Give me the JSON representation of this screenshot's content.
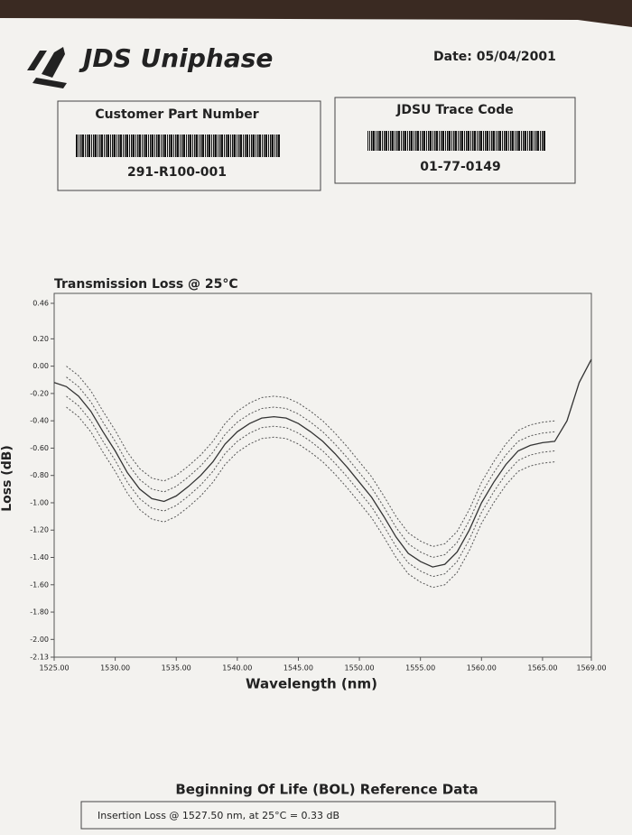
{
  "header": {
    "logo": "JDS Uniphase",
    "date": "Date: 05/04/2001"
  },
  "boxes": [
    {
      "title": "Customer Part Number",
      "value": "291-R100-001"
    },
    {
      "title": "JDSU Trace Code",
      "value": "01-77-0149"
    }
  ],
  "chart_data": {
    "type": "line",
    "title": "Transmission Loss @ 25°C",
    "x_label": "Wavelength (nm)",
    "y_label": "Loss (dB)",
    "x": [
      1525,
      1526,
      1527,
      1528,
      1529,
      1530,
      1531,
      1532,
      1533,
      1534,
      1535,
      1536,
      1537,
      1538,
      1539,
      1540,
      1541,
      1542,
      1543,
      1544,
      1545,
      1546,
      1547,
      1548,
      1549,
      1550,
      1551,
      1552,
      1553,
      1554,
      1555,
      1556,
      1557,
      1558,
      1559,
      1560,
      1561,
      1562,
      1563,
      1564,
      1565,
      1566,
      1567,
      1568,
      1569
    ],
    "series": [
      {
        "color": "#333333",
        "dashed": false,
        "values": [
          -0.12,
          -0.15,
          -0.22,
          -0.33,
          -0.48,
          -0.62,
          -0.78,
          -0.9,
          -0.97,
          -0.99,
          -0.95,
          -0.88,
          -0.8,
          -0.7,
          -0.57,
          -0.48,
          -0.42,
          -0.38,
          -0.37,
          -0.38,
          -0.42,
          -0.48,
          -0.55,
          -0.64,
          -0.74,
          -0.85,
          -0.96,
          -1.1,
          -1.25,
          -1.37,
          -1.43,
          -1.47,
          -1.45,
          -1.36,
          -1.2,
          -1.0,
          -0.85,
          -0.72,
          -0.62,
          -0.58,
          -0.56,
          -0.55,
          -0.4,
          -0.12,
          0.05
        ]
      },
      {
        "color": "#555555",
        "dashed": true,
        "values": [
          null,
          0,
          -0.07,
          -0.18,
          -0.33,
          -0.47,
          -0.63,
          -0.75,
          -0.82,
          -0.84,
          -0.8,
          -0.73,
          -0.65,
          -0.55,
          -0.42,
          -0.33,
          -0.27,
          -0.23,
          -0.22,
          -0.23,
          -0.27,
          -0.33,
          -0.4,
          -0.49,
          -0.59,
          -0.7,
          -0.81,
          -0.95,
          -1.1,
          -1.22,
          -1.28,
          -1.32,
          -1.3,
          -1.21,
          -1.05,
          -0.85,
          -0.7,
          -0.57,
          -0.47,
          -0.43,
          -0.41,
          -0.4,
          null,
          null,
          null
        ]
      },
      {
        "color": "#555555",
        "dashed": true,
        "values": [
          null,
          -0.08,
          -0.15,
          -0.26,
          -0.41,
          -0.55,
          -0.71,
          -0.83,
          -0.9,
          -0.92,
          -0.88,
          -0.81,
          -0.73,
          -0.63,
          -0.5,
          -0.41,
          -0.35,
          -0.31,
          -0.3,
          -0.31,
          -0.35,
          -0.41,
          -0.48,
          -0.57,
          -0.67,
          -0.78,
          -0.89,
          -1.03,
          -1.18,
          -1.3,
          -1.36,
          -1.4,
          -1.38,
          -1.29,
          -1.13,
          -0.93,
          -0.78,
          -0.65,
          -0.55,
          -0.51,
          -0.49,
          -0.48,
          null,
          null,
          null
        ]
      },
      {
        "color": "#555555",
        "dashed": true,
        "values": [
          null,
          -0.22,
          -0.29,
          -0.4,
          -0.55,
          -0.69,
          -0.85,
          -0.97,
          -1.04,
          -1.06,
          -1.02,
          -0.95,
          -0.87,
          -0.77,
          -0.64,
          -0.55,
          -0.49,
          -0.45,
          -0.44,
          -0.45,
          -0.49,
          -0.55,
          -0.62,
          -0.71,
          -0.81,
          -0.92,
          -1.03,
          -1.17,
          -1.32,
          -1.44,
          -1.5,
          -1.54,
          -1.52,
          -1.43,
          -1.27,
          -1.07,
          -0.92,
          -0.79,
          -0.69,
          -0.65,
          -0.63,
          -0.62,
          null,
          null,
          null
        ]
      },
      {
        "color": "#555555",
        "dashed": true,
        "values": [
          null,
          -0.3,
          -0.37,
          -0.48,
          -0.63,
          -0.77,
          -0.93,
          -1.05,
          -1.12,
          -1.14,
          -1.1,
          -1.03,
          -0.95,
          -0.85,
          -0.72,
          -0.63,
          -0.57,
          -0.53,
          -0.52,
          -0.53,
          -0.57,
          -0.63,
          -0.7,
          -0.79,
          -0.89,
          -1.0,
          -1.11,
          -1.25,
          -1.4,
          -1.52,
          -1.58,
          -1.62,
          -1.6,
          -1.51,
          -1.35,
          -1.15,
          -1.0,
          -0.87,
          -0.77,
          -0.73,
          -0.71,
          -0.7,
          null,
          null,
          null
        ]
      }
    ],
    "xlim": [
      1525,
      1569
    ],
    "xticks": [
      {
        "value": 1525,
        "label": "1525.00"
      },
      {
        "value": 1530,
        "label": "1530.00"
      },
      {
        "value": 1535,
        "label": "1535.00"
      },
      {
        "value": 1540,
        "label": "1540.00"
      },
      {
        "value": 1545,
        "label": "1545.00"
      },
      {
        "value": 1550,
        "label": "1550.00"
      },
      {
        "value": 1555,
        "label": "1555.00"
      },
      {
        "value": 1560,
        "label": "1560.00"
      },
      {
        "value": 1565,
        "label": "1565.00"
      },
      {
        "value": 1569,
        "label": "1569.00"
      }
    ],
    "ylim": [
      -2.13,
      0.46
    ],
    "yticks": [
      0.46,
      {
        "value": 0.2,
        "label": "0.20"
      },
      {
        "value": 0,
        "label": "0.00"
      },
      {
        "value": -0.2,
        "label": "-0.20"
      },
      {
        "value": -0.4,
        "label": "-0.40"
      },
      {
        "value": -0.6,
        "label": "-0.60"
      },
      {
        "value": -0.8,
        "label": "-0.80"
      },
      {
        "value": -1,
        "label": "-1.00"
      },
      {
        "value": -1.2,
        "label": "-1.20"
      },
      {
        "value": -1.4,
        "label": "-1.40"
      },
      {
        "value": -1.6,
        "label": "-1.60"
      },
      {
        "value": -1.8,
        "label": "-1.80"
      },
      {
        "value": -2,
        "label": "-2.00"
      },
      -2.13
    ],
    "grid": false
  },
  "footer": {
    "title": "Beginning Of Life (BOL) Reference Data",
    "note": "Insertion Loss @ 1527.50 nm, at 25°C = 0.33 dB"
  }
}
